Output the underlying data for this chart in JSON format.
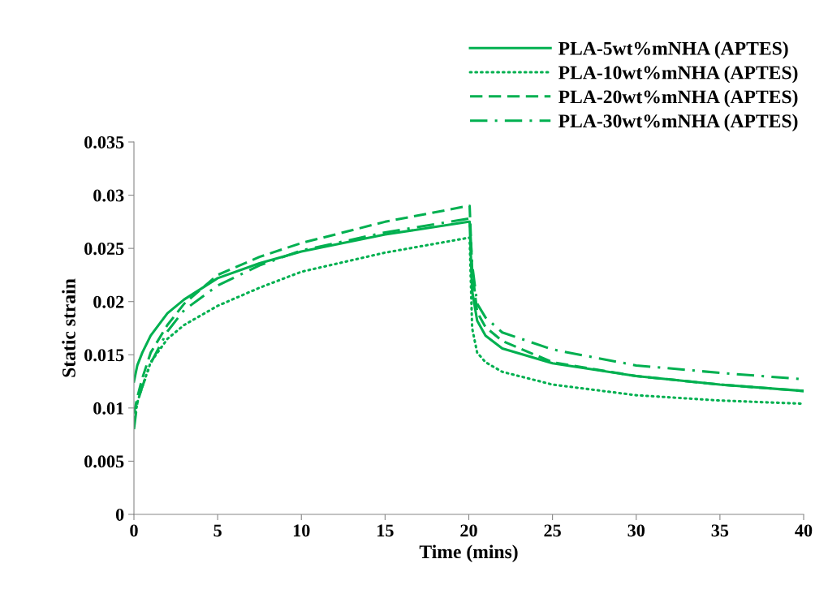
{
  "chart_data": {
    "type": "line",
    "xlabel": "Time (mins)",
    "ylabel": "Static strain",
    "xlim": [
      0,
      40
    ],
    "xticks": [
      0,
      5,
      10,
      15,
      20,
      25,
      30,
      35,
      40
    ],
    "ylim": [
      0,
      0.035
    ],
    "yticks": [
      0,
      0.005,
      0.01,
      0.015,
      0.02,
      0.025,
      0.03,
      0.035
    ],
    "grid": false,
    "legend": "top right",
    "marker": "none",
    "series": [
      {
        "name": "PLA-5wt%mNHA (APTES)",
        "color": "#00b050",
        "line_style": "solid",
        "x": [
          0,
          0.2,
          0.5,
          1,
          2,
          3,
          5,
          7.5,
          10,
          15,
          20,
          20.05,
          20.2,
          20.5,
          21,
          22,
          25,
          30,
          35,
          40
        ],
        "values": [
          0.0125,
          0.014,
          0.0152,
          0.0168,
          0.0189,
          0.0202,
          0.0222,
          0.0236,
          0.0247,
          0.0263,
          0.0275,
          0.0275,
          0.021,
          0.0182,
          0.0168,
          0.0156,
          0.0142,
          0.013,
          0.0122,
          0.0116
        ]
      },
      {
        "name": "PLA-10wt%mNHA (APTES)",
        "color": "#00b050",
        "line_style": "dotted",
        "x": [
          0,
          0.2,
          0.5,
          1,
          2,
          3,
          5,
          7.5,
          10,
          15,
          20,
          20.05,
          20.2,
          20.5,
          21,
          22,
          25,
          30,
          35,
          40
        ],
        "values": [
          0.0085,
          0.0105,
          0.012,
          0.0143,
          0.0165,
          0.0178,
          0.0196,
          0.0213,
          0.0228,
          0.0246,
          0.026,
          0.026,
          0.0175,
          0.0152,
          0.0143,
          0.0134,
          0.0122,
          0.0112,
          0.0107,
          0.0104
        ]
      },
      {
        "name": "PLA-20wt%mNHA (APTES)",
        "color": "#00b050",
        "line_style": "dashed",
        "x": [
          0,
          0.2,
          0.5,
          1,
          2,
          3,
          5,
          7.5,
          10,
          15,
          20,
          20.05,
          20.2,
          20.5,
          21,
          22,
          25,
          30,
          35,
          40
        ],
        "values": [
          0.0095,
          0.011,
          0.0128,
          0.0152,
          0.0178,
          0.0198,
          0.0225,
          0.0242,
          0.0255,
          0.0275,
          0.029,
          0.029,
          0.023,
          0.019,
          0.0176,
          0.0163,
          0.0143,
          0.013,
          0.0122,
          0.0116
        ]
      },
      {
        "name": "PLA-30wt%mNHA (APTES)",
        "color": "#00b050",
        "line_style": "dashdot",
        "x": [
          0,
          0.2,
          0.5,
          1,
          2,
          3,
          5,
          7.5,
          10,
          15,
          20,
          20.05,
          20.2,
          20.5,
          21,
          22,
          25,
          30,
          35,
          40
        ],
        "values": [
          0.008,
          0.0105,
          0.012,
          0.0142,
          0.0172,
          0.0192,
          0.0215,
          0.0234,
          0.0248,
          0.0265,
          0.0278,
          0.0278,
          0.0235,
          0.0198,
          0.0185,
          0.0171,
          0.0155,
          0.014,
          0.0133,
          0.0127
        ]
      }
    ]
  }
}
